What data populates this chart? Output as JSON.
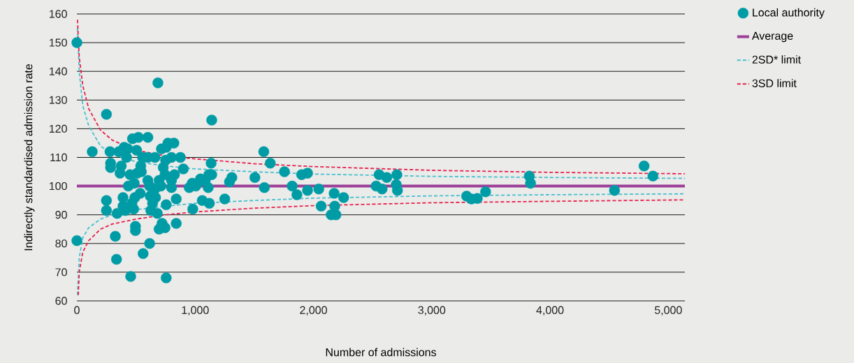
{
  "chart_data": {
    "type": "scatter",
    "xlabel": "Number of admissions",
    "ylabel": "Indirectly standardised admission rate",
    "xlim": [
      0,
      5140
    ],
    "ylim": [
      60,
      160
    ],
    "xticks": [
      0,
      {
        "value": 1000,
        "label": "1,000"
      },
      {
        "value": 2000,
        "label": "2,000"
      },
      {
        "value": 3000,
        "label": "3,000"
      },
      {
        "value": 4000,
        "label": "4,000"
      },
      {
        "value": 5000,
        "label": "5,000"
      }
    ],
    "yticks": [
      60,
      70,
      80,
      90,
      100,
      110,
      120,
      130,
      140,
      150,
      160
    ],
    "grid": "y",
    "legend": "top right",
    "series": [
      {
        "name": "Local authority",
        "color": "#009ca6",
        "marker": "circle",
        "x": [
          0,
          0,
          130,
          250,
          250,
          250,
          280,
          285,
          285,
          325,
          335,
          340,
          355,
          365,
          375,
          390,
          390,
          400,
          410,
          420,
          430,
          435,
          450,
          465,
          470,
          480,
          485,
          490,
          495,
          495,
          505,
          510,
          520,
          535,
          540,
          545,
          555,
          560,
          455,
          600,
          600,
          600,
          615,
          615,
          625,
          640,
          620,
          660,
          660,
          665,
          680,
          685,
          695,
          695,
          710,
          715,
          720,
          730,
          745,
          750,
          755,
          755,
          745,
          755,
          770,
          800,
          800,
          800,
          820,
          825,
          840,
          840,
          875,
          900,
          950,
          975,
          980,
          1005,
          1020,
          1045,
          1060,
          1085,
          1110,
          1135,
          1120,
          1140,
          1140,
          1115,
          1250,
          1290,
          1310,
          1505,
          1580,
          1585,
          1635,
          1755,
          1820,
          1860,
          1900,
          1950,
          1950,
          2045,
          2065,
          2150,
          2190,
          2175,
          2180,
          2255,
          2530,
          2555,
          2580,
          2620,
          2700,
          2705,
          2710,
          3295,
          3335,
          3385,
          3455,
          3825,
          3835,
          4545,
          4795,
          4870
        ],
        "values": [
          150,
          81,
          112,
          125,
          95,
          91.5,
          112,
          108,
          106.5,
          82.5,
          74.5,
          90.5,
          112,
          104.5,
          107,
          96,
          93,
          113.5,
          91.5,
          110,
          113,
          100,
          104,
          94,
          116.5,
          92,
          101,
          96,
          86,
          84.5,
          112.5,
          104.5,
          117,
          97.5,
          107,
          105,
          110,
          76.5,
          68.5,
          117,
          110,
          102,
          100,
          80,
          91.5,
          94,
          96.5,
          110,
          99,
          96,
          90.5,
          136,
          102,
          85,
          100,
          113,
          87,
          106.5,
          104,
          109,
          93.5,
          113.5,
          85.5,
          68,
          115,
          110,
          102,
          99.5,
          115,
          104,
          95.5,
          87,
          110,
          106,
          99.5,
          101,
          92,
          100,
          101,
          102.5,
          95,
          102,
          99.5,
          108,
          94,
          123,
          104,
          104,
          95.5,
          101.5,
          103,
          103,
          112,
          99.5,
          108,
          105,
          100,
          97,
          104,
          104.5,
          98.5,
          99,
          93,
          90,
          90,
          97.5,
          93,
          96,
          100,
          104,
          99,
          103,
          100.5,
          104,
          98.5,
          96.5,
          95.5,
          95.7,
          98,
          103.5,
          101,
          98.5,
          107,
          103.5
        ]
      },
      {
        "name": "Average",
        "type": "line",
        "color": "#9c3f98",
        "line_style": "solid",
        "marker": "none",
        "x": [
          0,
          5140
        ],
        "values": [
          100,
          100
        ]
      },
      {
        "name": "2SD* limit",
        "type": "line",
        "color": "#47c1d0",
        "line_style": "dashed",
        "marker": "none",
        "x": [
          5,
          20,
          50,
          100,
          200,
          300,
          500,
          750,
          1000,
          1500,
          2000,
          3000,
          4000,
          5140
        ],
        "values": [
          155,
          140,
          128,
          121,
          114,
          111,
          108.5,
          107,
          106,
          105,
          104.2,
          103.4,
          103,
          102.7
        ]
      },
      {
        "type": "line",
        "color": "#47c1d0",
        "line_style": "dashed",
        "marker": "none",
        "x": [
          5,
          20,
          50,
          100,
          200,
          300,
          500,
          750,
          1000,
          1500,
          2000,
          3000,
          4000,
          5140
        ],
        "values": [
          62,
          75,
          82,
          85.5,
          88.5,
          90,
          91.8,
          93,
          94,
          95,
          95.8,
          96.6,
          97,
          97.3
        ]
      },
      {
        "name": "3SD limit",
        "type": "line",
        "color": "#e8204e",
        "line_style": "dashed",
        "marker": "none",
        "x": [
          5,
          20,
          50,
          100,
          200,
          300,
          500,
          750,
          1000,
          1500,
          2000,
          3000,
          4000,
          5140
        ],
        "values": [
          158,
          145,
          135,
          127,
          119.5,
          116,
          112.5,
          110.5,
          109.5,
          107.8,
          106.8,
          105.5,
          104.8,
          104.3
        ]
      },
      {
        "type": "line",
        "color": "#e8204e",
        "line_style": "dashed",
        "marker": "none",
        "x": [
          12,
          20,
          50,
          100,
          200,
          300,
          500,
          750,
          1000,
          1500,
          2000,
          3000,
          4000,
          5140
        ],
        "values": [
          62,
          70,
          77,
          81,
          85,
          86.8,
          88.5,
          90,
          91,
          92.3,
          93.2,
          94.2,
          94.7,
          95.2
        ]
      }
    ]
  }
}
